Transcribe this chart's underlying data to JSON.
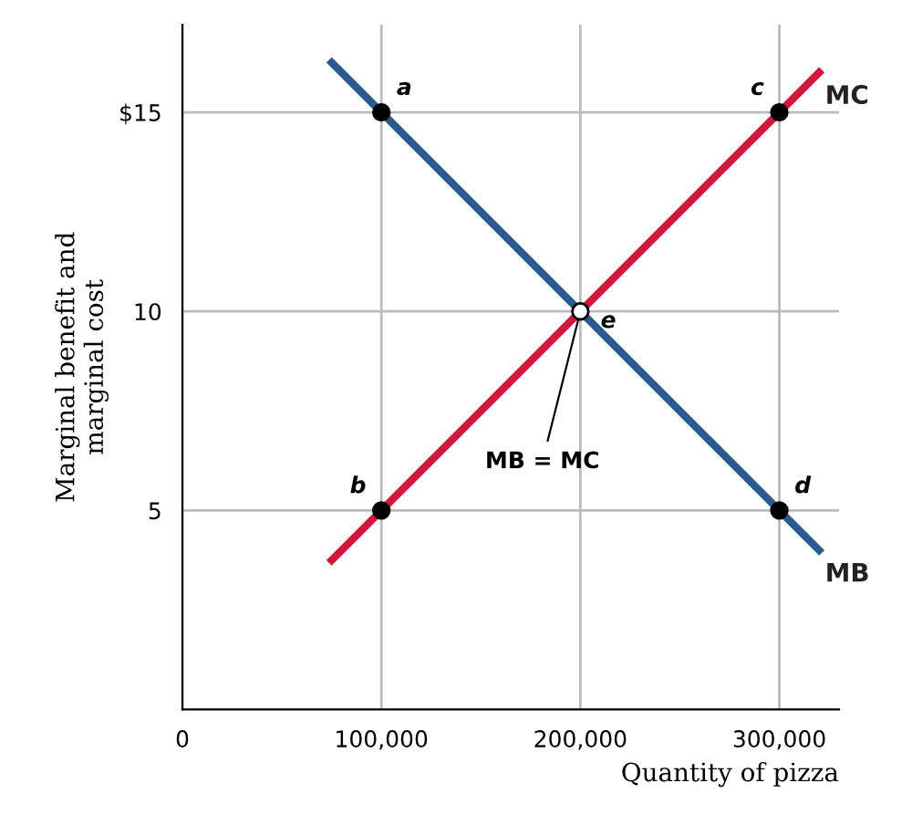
{
  "chart_data": {
    "type": "line",
    "xlabel": "Quantity of pizza",
    "ylabel": "Marginal benefit and\nmarginal cost",
    "series": [
      {
        "name": "MB",
        "color": "#2b5b8e",
        "x": [
          75000,
          320000
        ],
        "values": [
          16.25,
          4
        ]
      },
      {
        "name": "MC",
        "color": "#d4163c",
        "x": [
          75000,
          320000
        ],
        "values": [
          3.75,
          16
        ]
      },
      {
        "type": "scatter",
        "marker": "circle",
        "color": "#000000",
        "x": [
          100000,
          100000,
          300000,
          300000
        ],
        "values": [
          15,
          5,
          15,
          5
        ]
      },
      {
        "type": "scatter",
        "marker": "circle",
        "color": "#ffffff",
        "x": [
          200000
        ],
        "values": [
          10
        ]
      }
    ],
    "xlim": [
      0,
      330000
    ],
    "ylim": [
      0,
      17.2
    ],
    "xticks": [
      0,
      {
        "value": 100000,
        "label": "100,000"
      },
      {
        "value": 200000,
        "label": "200,000"
      },
      {
        "value": 300000,
        "label": "300,000"
      }
    ],
    "yticks": [
      {
        "value": 5,
        "label": "5"
      },
      {
        "value": 10,
        "label": "10"
      },
      {
        "value": 15,
        "label": "$15"
      }
    ],
    "grid": true,
    "legend": false,
    "line_style": "solid",
    "annotations": [
      {
        "text": "a",
        "x": 100000,
        "y": 15
      },
      {
        "text": "b",
        "x": 100000,
        "y": 5
      },
      {
        "text": "c",
        "x": 300000,
        "y": 15
      },
      {
        "text": "d",
        "x": 300000,
        "y": 5
      },
      {
        "text": "e",
        "x": 200000,
        "y": 10
      },
      {
        "text": "MB = MC",
        "x": 200000,
        "y": 10
      }
    ]
  }
}
